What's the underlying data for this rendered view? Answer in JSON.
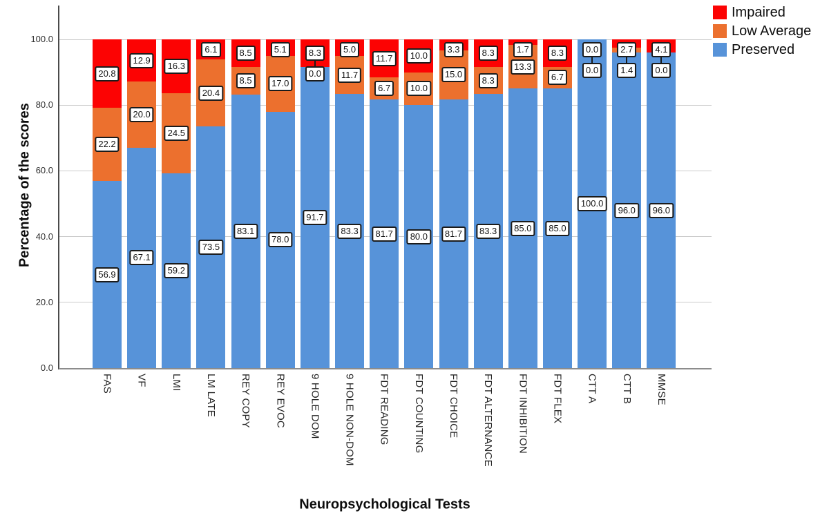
{
  "figure": {
    "background": "#ffffff"
  },
  "chart_data": {
    "type": "bar",
    "stacked": true,
    "orientation": "vertical",
    "xlabel": "Neuropsychological Tests",
    "ylabel": "Percentage of the scores",
    "ylim": [
      0,
      100
    ],
    "yticks": [
      0,
      20,
      40,
      60,
      80,
      100
    ],
    "ytick_labels": [
      "0.0",
      "20.0",
      "40.0",
      "60.0",
      "80.0",
      "100.0"
    ],
    "grid": true,
    "legend_position": "top-right",
    "value_labels": "boxed, one decimal, shown for every segment",
    "categories": [
      "FAS",
      "VF",
      "LMI",
      "LM LATE",
      "REY COPY",
      "REY EVOC",
      "9 HOLE DOM",
      "9 HOLE NON-DOM",
      "FDT READING",
      "FDT COUNTING",
      "FDT CHOICE",
      "FDT ALTERNANCE",
      "FDT INHIBITION",
      "FDT FLEX",
      "CTT A",
      "CTT B",
      "MMSE"
    ],
    "series": [
      {
        "name": "Impaired",
        "color": "#fc0303",
        "values": [
          20.8,
          12.9,
          16.3,
          6.1,
          8.5,
          5.1,
          8.3,
          5.0,
          11.7,
          10.0,
          3.3,
          8.3,
          1.7,
          8.3,
          0.0,
          2.7,
          4.1
        ]
      },
      {
        "name": "Low Average",
        "color": "#ec702e",
        "values": [
          22.2,
          20.0,
          24.5,
          20.4,
          8.5,
          17.0,
          0.0,
          11.7,
          6.7,
          10.0,
          15.0,
          8.3,
          13.3,
          6.7,
          0.0,
          1.4,
          0.0
        ]
      },
      {
        "name": "Preserved",
        "color": "#5793d9",
        "values": [
          56.9,
          67.1,
          59.2,
          73.5,
          83.1,
          78.0,
          91.7,
          83.3,
          81.7,
          80.0,
          81.7,
          83.3,
          85.0,
          85.0,
          100.0,
          96.0,
          96.0
        ]
      }
    ],
    "colors": {
      "gridline": "#cbcbcb",
      "label_box_border": "#1b1b1b",
      "label_box_fill": "#ffffff"
    }
  }
}
